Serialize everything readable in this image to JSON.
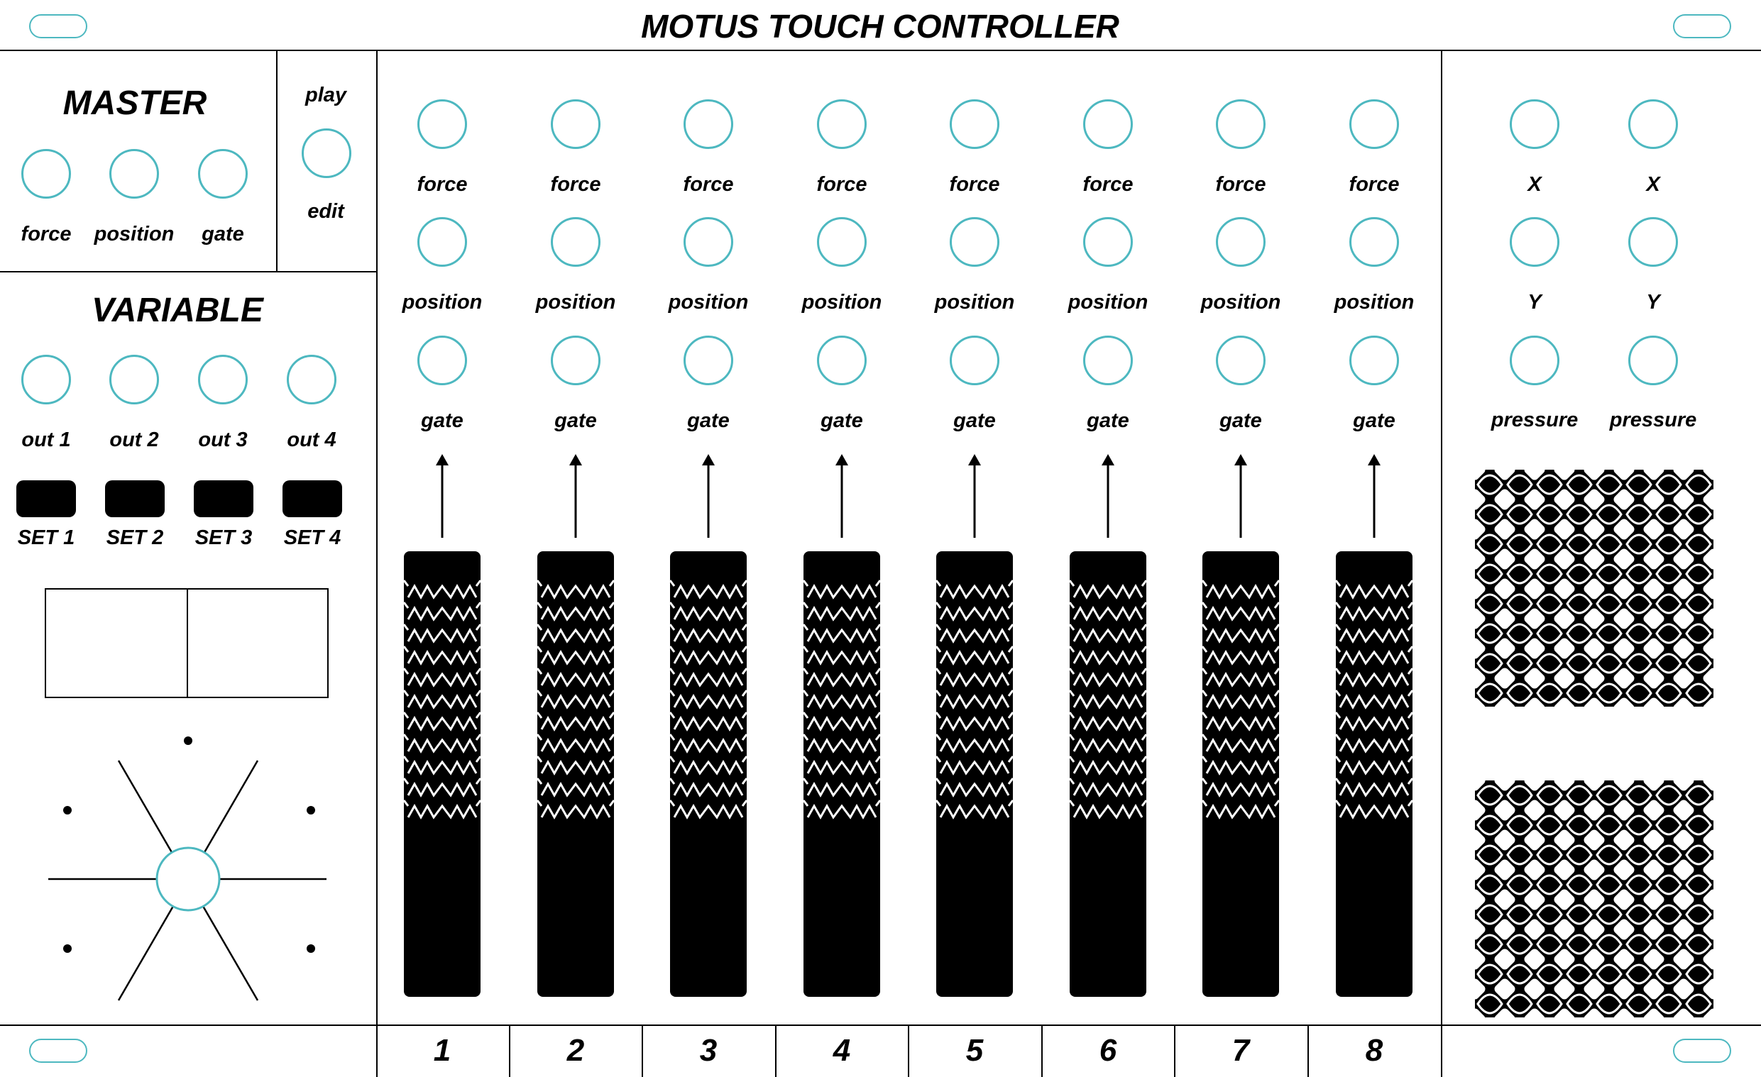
{
  "header": {
    "title": "MOTUS TOUCH CONTROLLER"
  },
  "master": {
    "heading": "MASTER",
    "jacks": [
      {
        "label": "force"
      },
      {
        "label": "position"
      },
      {
        "label": "gate"
      }
    ]
  },
  "mode": {
    "top_label": "play",
    "bottom_label": "edit"
  },
  "variable": {
    "heading": "VARIABLE",
    "outputs": [
      {
        "label": "out 1"
      },
      {
        "label": "out 2"
      },
      {
        "label": "out 3"
      },
      {
        "label": "out 4"
      }
    ],
    "set_buttons": [
      {
        "label": "SET 1"
      },
      {
        "label": "SET 2"
      },
      {
        "label": "SET 3"
      },
      {
        "label": "SET 4"
      }
    ]
  },
  "channels": [
    {
      "number": "1",
      "force_label": "force",
      "position_label": "position",
      "gate_label": "gate"
    },
    {
      "number": "2",
      "force_label": "force",
      "position_label": "position",
      "gate_label": "gate"
    },
    {
      "number": "3",
      "force_label": "force",
      "position_label": "position",
      "gate_label": "gate"
    },
    {
      "number": "4",
      "force_label": "force",
      "position_label": "position",
      "gate_label": "gate"
    },
    {
      "number": "5",
      "force_label": "force",
      "position_label": "position",
      "gate_label": "gate"
    },
    {
      "number": "6",
      "force_label": "force",
      "position_label": "position",
      "gate_label": "gate"
    },
    {
      "number": "7",
      "force_label": "force",
      "position_label": "position",
      "gate_label": "gate"
    },
    {
      "number": "8",
      "force_label": "force",
      "position_label": "position",
      "gate_label": "gate"
    }
  ],
  "xy_pads": [
    {
      "x_label": "X",
      "y_label": "Y",
      "pressure_label": "pressure"
    },
    {
      "x_label": "X",
      "y_label": "Y",
      "pressure_label": "pressure"
    }
  ],
  "colors": {
    "accent": "#4db8c0",
    "ink": "#000000",
    "panel": "#ffffff"
  }
}
